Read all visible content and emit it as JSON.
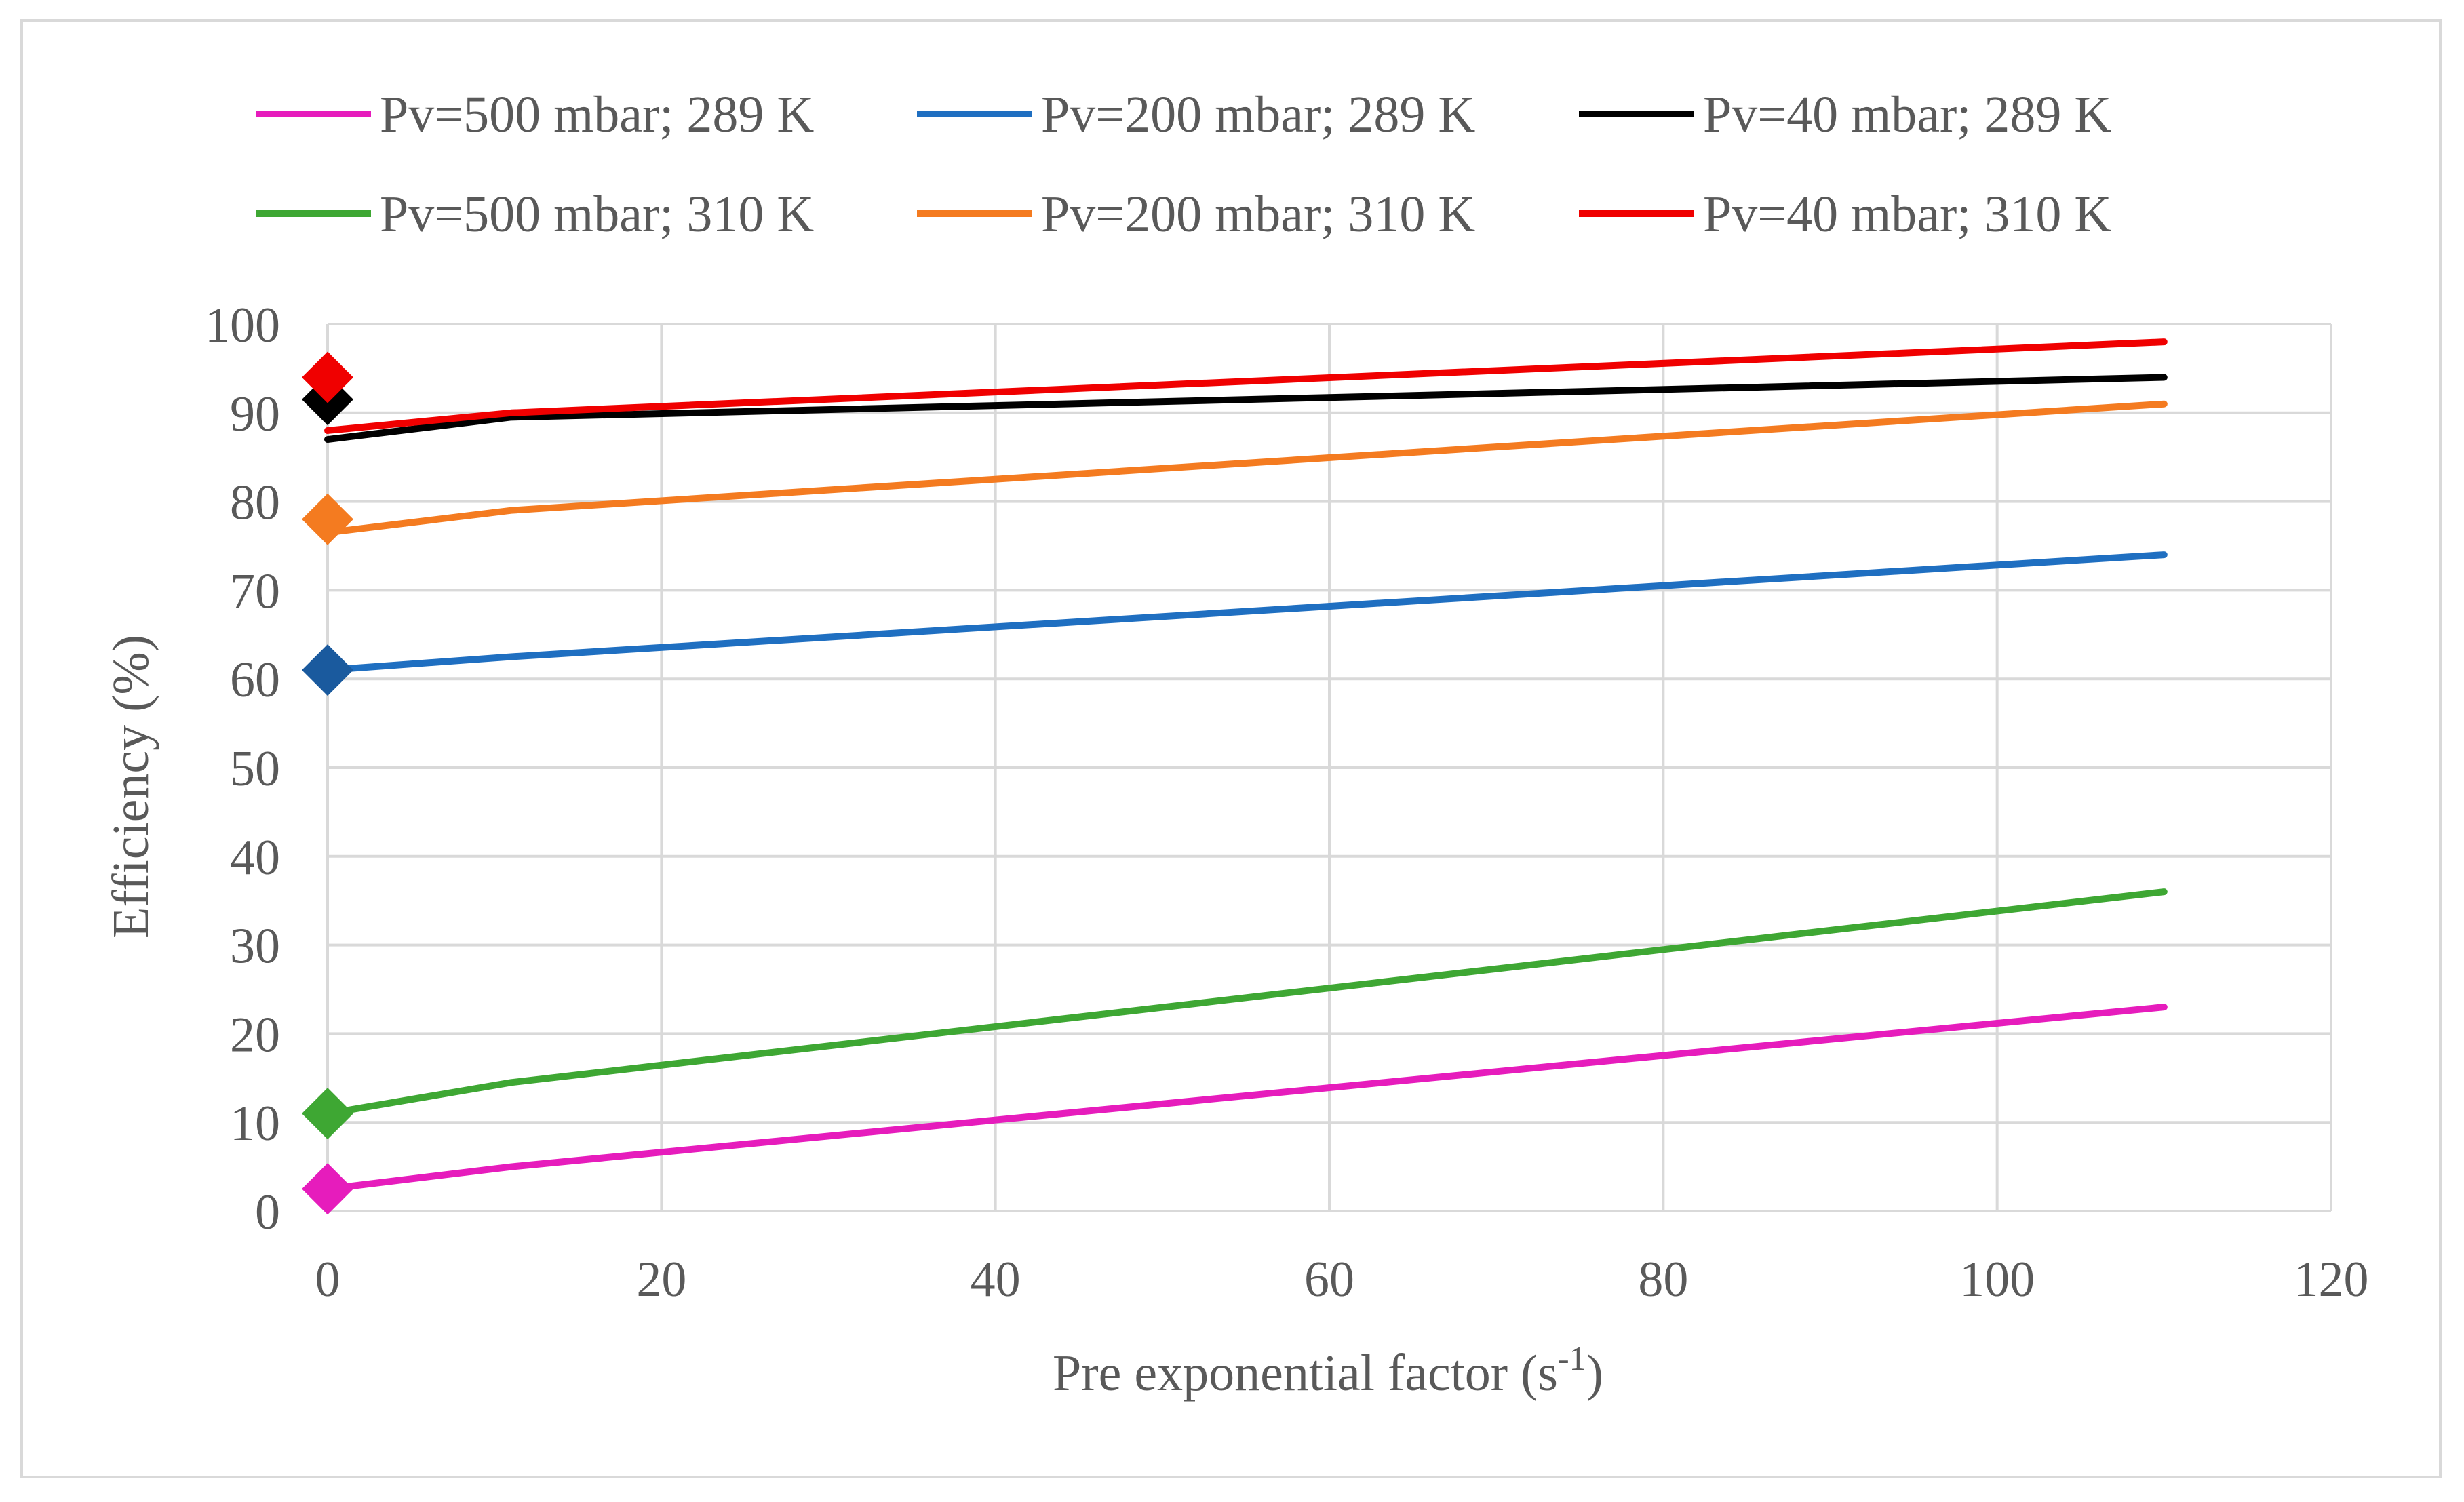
{
  "chart_data": {
    "type": "line",
    "title": "",
    "xlabel": "Pre exponential factor (s",
    "xlabel_superscript": "-1",
    "xlabel_suffix": ")",
    "ylabel": "Efficiency (%)",
    "xlim": [
      0,
      120
    ],
    "ylim": [
      0,
      100
    ],
    "xticks": [
      0,
      20,
      40,
      60,
      80,
      100,
      120
    ],
    "yticks": [
      0,
      10,
      20,
      30,
      40,
      50,
      60,
      70,
      80,
      90,
      100
    ],
    "grid": true,
    "legend_position": "top",
    "series": [
      {
        "name": "Pv=500 mbar; 289 K",
        "color": "#e61cbc",
        "x": [
          0,
          11,
          110
        ],
        "y": [
          2.5,
          5,
          23
        ],
        "marker_x": 0,
        "marker_y": 2.5
      },
      {
        "name": "Pv=200 mbar; 289 K",
        "color": "#1f6fc1",
        "x": [
          0,
          11,
          110
        ],
        "y": [
          61,
          62.5,
          74
        ],
        "marker_x": 0,
        "marker_y": 61
      },
      {
        "name": "Pv=40 mbar; 289 K",
        "color": "#000000",
        "x": [
          0,
          11,
          110
        ],
        "y": [
          87,
          89.5,
          94
        ],
        "marker_x": 0,
        "marker_y": 91.5
      },
      {
        "name": "Pv=500 mbar; 310 K",
        "color": "#3ea733",
        "x": [
          0,
          11,
          110
        ],
        "y": [
          11,
          14.5,
          36
        ],
        "marker_x": 0,
        "marker_y": 11
      },
      {
        "name": "Pv=200 mbar; 310 K",
        "color": "#f47b20",
        "x": [
          0,
          11,
          110
        ],
        "y": [
          76.5,
          79,
          91
        ],
        "marker_x": 0,
        "marker_y": 78
      },
      {
        "name": "Pv=40 mbar; 310 K",
        "color": "#f00000",
        "x": [
          0,
          11,
          110
        ],
        "y": [
          88,
          90,
          98
        ],
        "marker_x": 0,
        "marker_y": 94
      }
    ]
  }
}
